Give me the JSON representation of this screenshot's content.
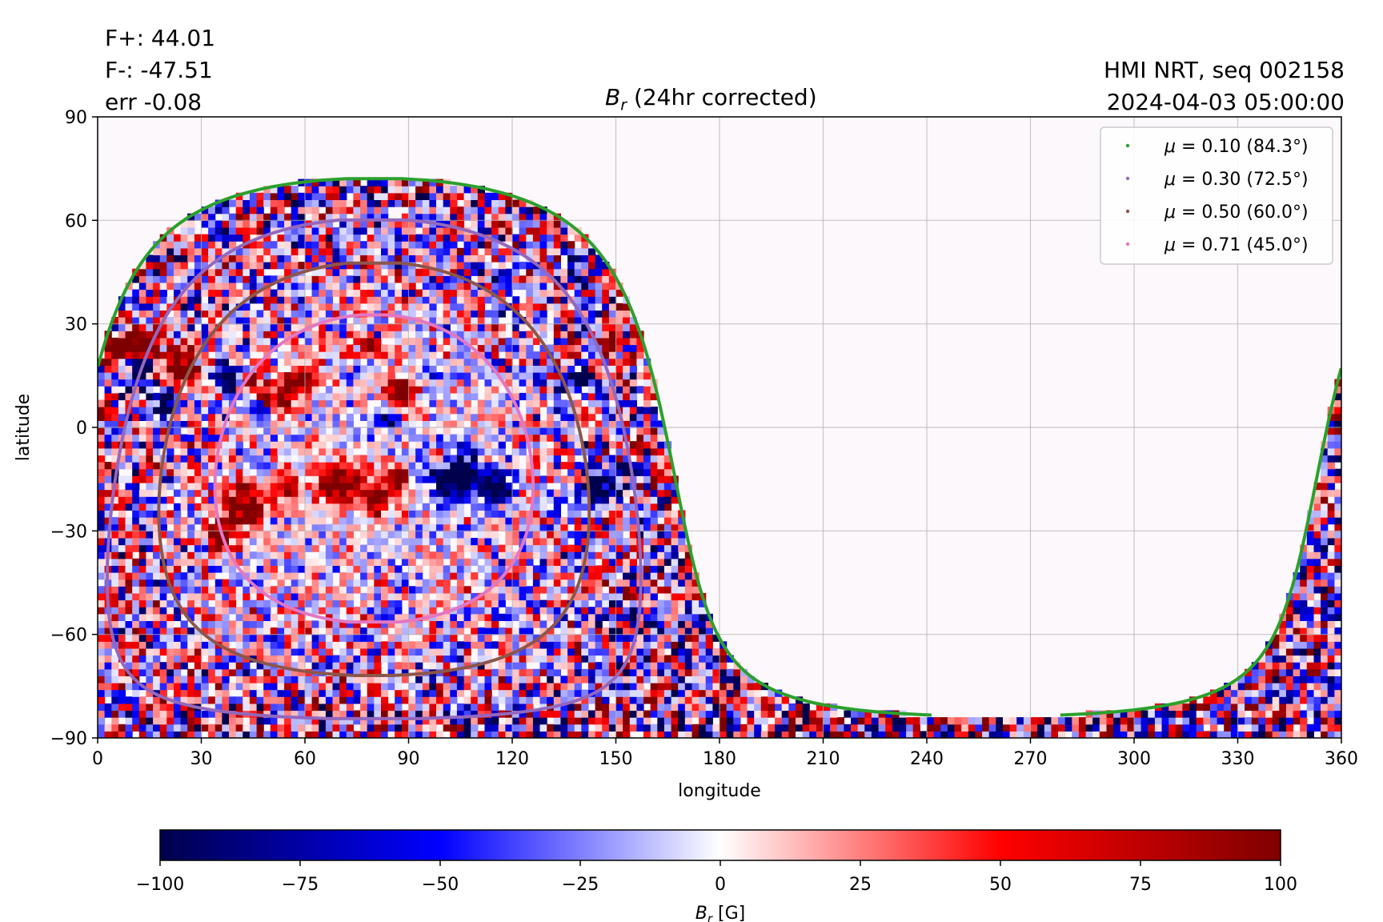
{
  "header": {
    "flux_pos": "F+: 44.01",
    "flux_neg": "F-: -47.51",
    "err": "err -0.08",
    "source": "HMI NRT, seq 002158",
    "datetime": "2024-04-03 05:00:00"
  },
  "chart_data": {
    "type": "heatmap",
    "title": "(24hr corrected)",
    "title_symbol": "B",
    "title_symbol_sub": "r",
    "xlabel": "longitude",
    "ylabel": "latitude",
    "xlim": [
      0,
      360
    ],
    "ylim": [
      -90,
      90
    ],
    "x_ticks": [
      0,
      30,
      60,
      90,
      120,
      150,
      180,
      210,
      240,
      270,
      300,
      330,
      360
    ],
    "y_ticks": [
      -90,
      -60,
      -30,
      0,
      30,
      60,
      90
    ],
    "x_tick_labels": [
      "0",
      "30",
      "60",
      "90",
      "120",
      "150",
      "180",
      "210",
      "240",
      "270",
      "300",
      "330",
      "360"
    ],
    "y_tick_labels": [
      "−90",
      "−60",
      "−30",
      "0",
      "30",
      "60",
      "90"
    ],
    "grid": true,
    "legend_position": "top-right",
    "disk_center": {
      "lon": 80,
      "lat": -12
    },
    "series": [
      {
        "name": "μ = 0.10 (84.3°)",
        "mu": 0.1,
        "color": "#2ca02c"
      },
      {
        "name": "μ = 0.30 (72.5°)",
        "mu": 0.3,
        "color": "#9467bd"
      },
      {
        "name": "μ = 0.50 (60.0°)",
        "mu": 0.5,
        "color": "#8c564b"
      },
      {
        "name": "μ = 0.71 (45.0°)",
        "mu": 0.71,
        "color": "#e377c2"
      }
    ],
    "legend_labels": [
      {
        "sym": "μ",
        "text": " = 0.10 (84.3°)"
      },
      {
        "sym": "μ",
        "text": " = 0.30 (72.5°)"
      },
      {
        "sym": "μ",
        "text": " = 0.50 (60.0°)"
      },
      {
        "sym": "μ",
        "text": " = 0.71 (45.0°)"
      }
    ],
    "colorbar": {
      "label_symbol": "B",
      "label_sub": "r",
      "label_unit": " [G]",
      "range": [
        -100,
        100
      ],
      "ticks": [
        -100,
        -75,
        -50,
        -25,
        0,
        25,
        50,
        75,
        100
      ],
      "tick_labels": [
        "−100",
        "−75",
        "−50",
        "−25",
        "0",
        "25",
        "50",
        "75",
        "100"
      ],
      "colormap": "seismic"
    }
  }
}
